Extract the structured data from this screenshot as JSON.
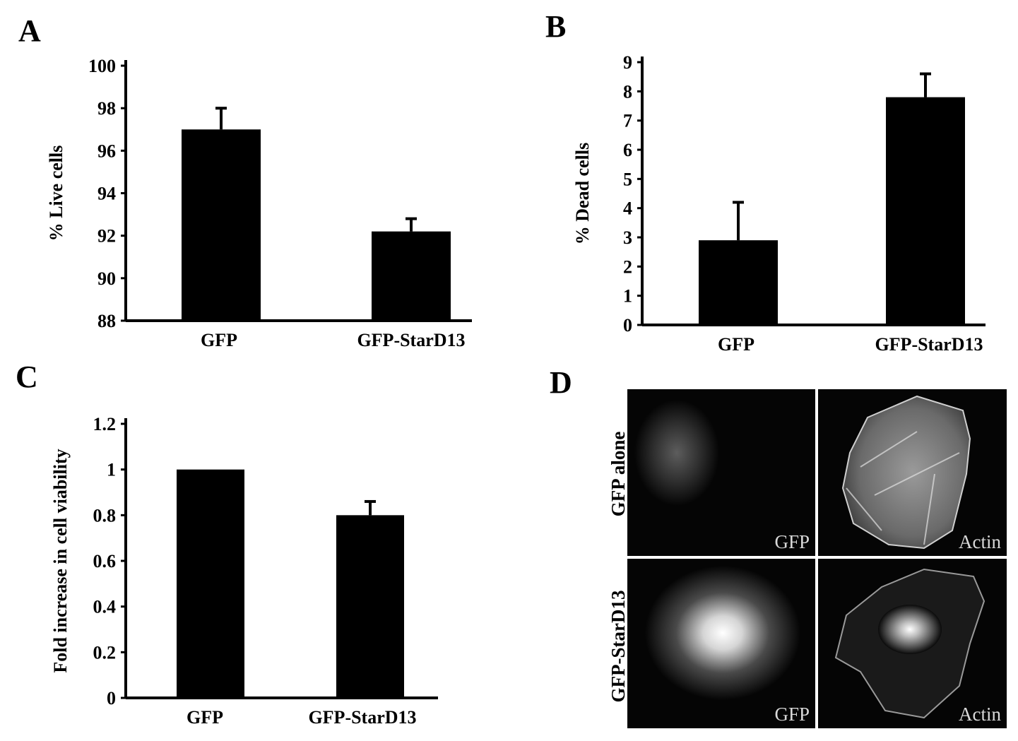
{
  "panels": {
    "A": {
      "letter": "A"
    },
    "B": {
      "letter": "B"
    },
    "C": {
      "letter": "C"
    },
    "D": {
      "letter": "D"
    }
  },
  "chart_data": [
    {
      "id": "A",
      "type": "bar",
      "categories": [
        "GFP",
        "GFP-StarD13"
      ],
      "values": [
        97.0,
        92.2
      ],
      "errors": [
        1.0,
        0.6
      ],
      "ylabel": "% Live cells",
      "xlabel": "",
      "ylim": [
        88,
        100
      ],
      "yticks": [
        88,
        90,
        92,
        94,
        96,
        98,
        100
      ],
      "grid": false,
      "bar_color": "#000000"
    },
    {
      "id": "B",
      "type": "bar",
      "categories": [
        "GFP",
        "GFP-StarD13"
      ],
      "values": [
        2.9,
        7.8
      ],
      "errors": [
        1.3,
        0.8
      ],
      "ylabel": "% Dead cells",
      "xlabel": "",
      "ylim": [
        0,
        9
      ],
      "yticks": [
        0,
        1,
        2,
        3,
        4,
        5,
        6,
        7,
        8,
        9
      ],
      "grid": false,
      "bar_color": "#000000"
    },
    {
      "id": "C",
      "type": "bar",
      "categories": [
        "GFP",
        "GFP-StarD13"
      ],
      "values": [
        1.0,
        0.8
      ],
      "errors": [
        0,
        0.06
      ],
      "ylabel": "Fold increase in cell viability",
      "xlabel": "",
      "ylim": [
        0,
        1.2
      ],
      "yticks": [
        "0",
        "0.2",
        "0.4",
        "0.6",
        "0.8",
        "1",
        "1.2"
      ],
      "grid": false,
      "bar_color": "#000000"
    }
  ],
  "micrographs": {
    "rows": [
      {
        "label": "GFP alone",
        "tiles": [
          "GFP",
          "Actin"
        ]
      },
      {
        "label": "GFP-StarD13",
        "tiles": [
          "GFP",
          "Actin"
        ]
      }
    ]
  }
}
